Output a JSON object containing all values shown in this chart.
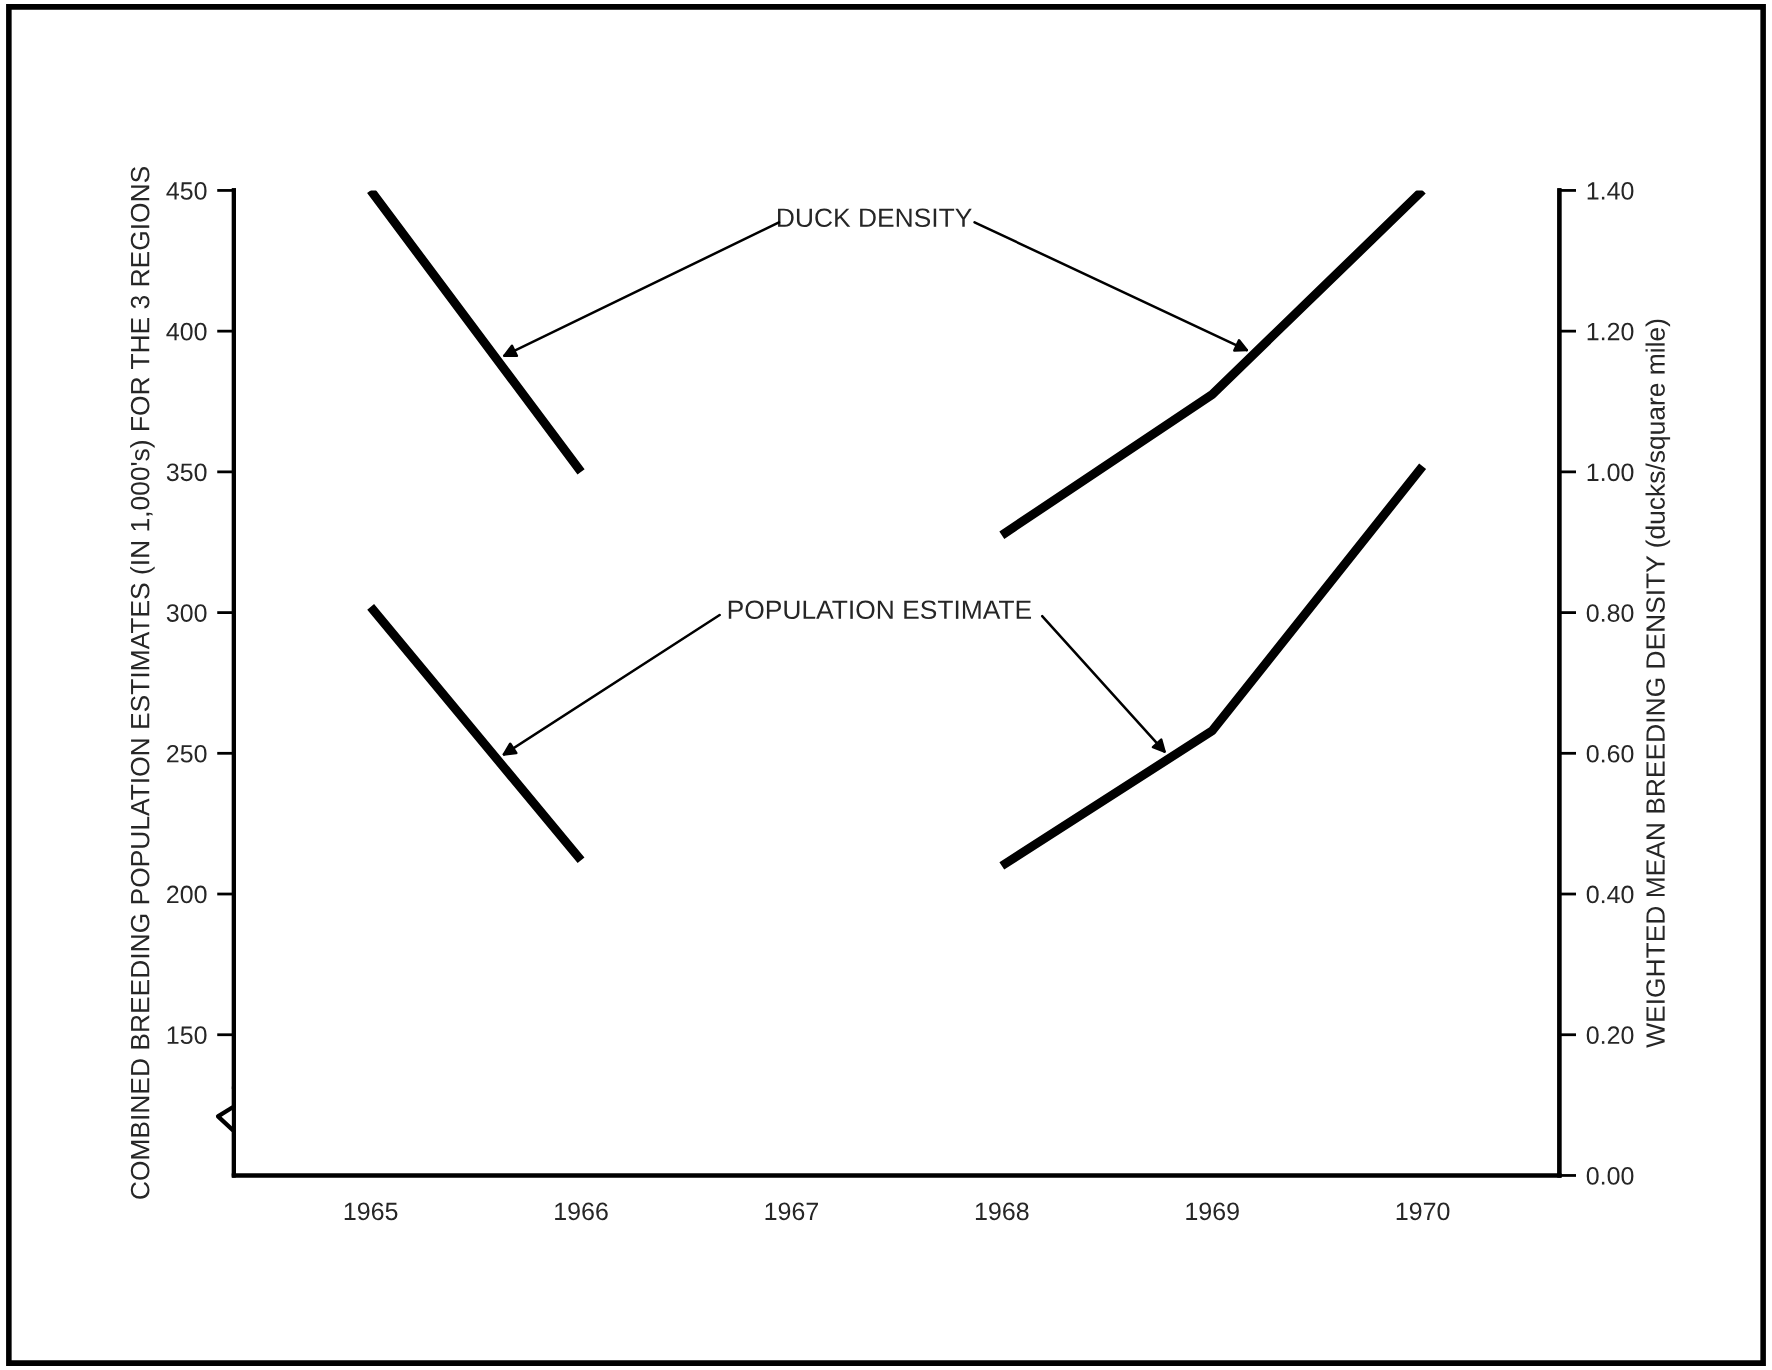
{
  "chart_data": {
    "type": "line",
    "x": [
      1965,
      1966,
      1967,
      1968,
      1969,
      1970
    ],
    "xlim": [
      1964.35,
      1970.65
    ],
    "xticks": [
      {
        "value": 1965,
        "label": "1965"
      },
      {
        "value": 1966,
        "label": "1966"
      },
      {
        "value": 1967,
        "label": "1967"
      },
      {
        "value": 1968,
        "label": "1968"
      },
      {
        "value": 1969,
        "label": "1969"
      },
      {
        "value": 1970,
        "label": "1970"
      }
    ],
    "ylabel": "COMBINED BREEDING POPULATION ESTIMATES (IN 1,000's) FOR THE 3 REGIONS",
    "y2label": "WEIGHTED MEAN BREEDING DENSITY (ducks/square mile)",
    "ylim": [
      100,
      450
    ],
    "yticks": [
      150,
      200,
      250,
      300,
      350,
      400,
      450
    ],
    "y2lim": [
      0,
      1.4
    ],
    "y2ticks": [
      {
        "value": 0,
        "label": "0.00"
      },
      {
        "value": 0.2,
        "label": "0.20"
      },
      {
        "value": 0.4,
        "label": "0.40"
      },
      {
        "value": 0.6,
        "label": "0.60"
      },
      {
        "value": 0.8,
        "label": "0.80"
      },
      {
        "value": 1.0,
        "label": "1.00"
      },
      {
        "value": 1.2,
        "label": "1.20"
      },
      {
        "value": 1.4,
        "label": "1.40"
      }
    ],
    "series": [
      {
        "name": "DUCK DENSITY",
        "color": "#000000",
        "axis": "y2",
        "values": [
          1.4,
          1.0,
          null,
          0.91,
          1.11,
          1.4
        ]
      },
      {
        "name": "POPULATION ESTIMATE",
        "color": "#000000",
        "values": [
          302,
          212,
          null,
          210,
          258,
          352
        ]
      }
    ],
    "marker": "none",
    "line_style": "solid",
    "grid": false,
    "legend": false
  }
}
